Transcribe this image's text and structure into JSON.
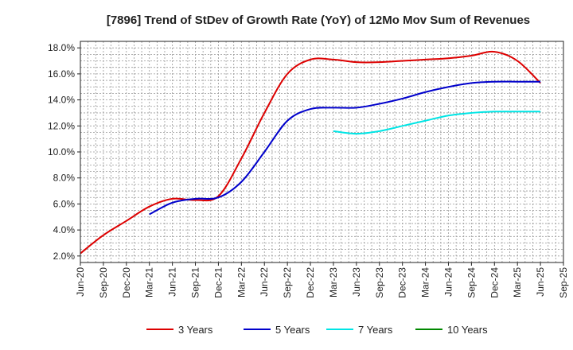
{
  "chart_data": {
    "type": "line",
    "title": "[7896]  Trend of StDev of Growth Rate (YoY) of 12Mo Mov Sum of Revenues",
    "xlabel": "",
    "ylabel": "",
    "x": [
      "Jun-20",
      "Sep-20",
      "Dec-20",
      "Mar-21",
      "Jun-21",
      "Sep-21",
      "Dec-21",
      "Mar-22",
      "Jun-22",
      "Sep-22",
      "Dec-22",
      "Mar-23",
      "Jun-23",
      "Sep-23",
      "Dec-23",
      "Mar-24",
      "Jun-24",
      "Sep-24",
      "Dec-24",
      "Mar-25",
      "Jun-25",
      "Sep-25"
    ],
    "ylim": [
      1.5,
      18.5
    ],
    "yticks": [
      2.0,
      4.0,
      6.0,
      8.0,
      10.0,
      12.0,
      14.0,
      16.0,
      18.0
    ],
    "ytick_labels": [
      "2.0%",
      "4.0%",
      "6.0%",
      "8.0%",
      "10.0%",
      "12.0%",
      "14.0%",
      "16.0%",
      "18.0%"
    ],
    "grid": true,
    "legend_position": "bottom",
    "series": [
      {
        "name": "3 Years",
        "color": "#dd0000",
        "values": [
          2.2,
          3.6,
          4.7,
          5.8,
          6.4,
          6.3,
          6.6,
          9.5,
          13.0,
          16.0,
          17.1,
          17.1,
          16.9,
          16.9,
          17.0,
          17.1,
          17.2,
          17.4,
          17.7,
          17.0,
          15.3,
          null
        ]
      },
      {
        "name": "5 Years",
        "color": "#0000cc",
        "values": [
          null,
          null,
          null,
          5.2,
          6.1,
          6.4,
          6.5,
          7.7,
          10.0,
          12.4,
          13.3,
          13.4,
          13.4,
          13.7,
          14.1,
          14.6,
          15.0,
          15.3,
          15.4,
          15.4,
          15.4,
          null
        ]
      },
      {
        "name": "7 Years",
        "color": "#00e5e5",
        "values": [
          null,
          null,
          null,
          null,
          null,
          null,
          null,
          null,
          null,
          null,
          null,
          11.6,
          11.4,
          11.6,
          12.0,
          12.4,
          12.8,
          13.0,
          13.1,
          13.1,
          13.1,
          null
        ]
      },
      {
        "name": "10 Years",
        "color": "#008800",
        "values": [
          null,
          null,
          null,
          null,
          null,
          null,
          null,
          null,
          null,
          null,
          null,
          null,
          null,
          null,
          null,
          null,
          null,
          null,
          null,
          null,
          null,
          null
        ]
      }
    ]
  }
}
